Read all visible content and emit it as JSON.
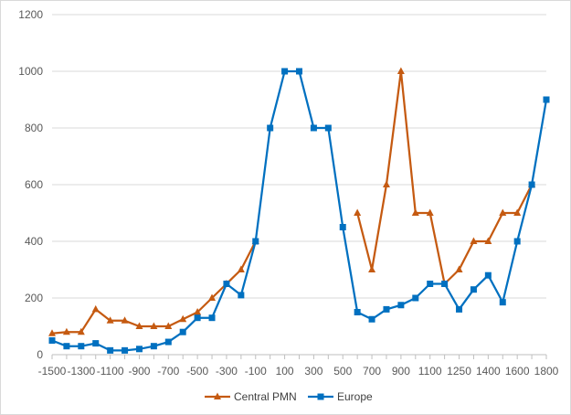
{
  "chart_data": {
    "type": "line",
    "title": "",
    "xlabel": "",
    "ylabel": "",
    "ylim": [
      0,
      1200
    ],
    "yticks": [
      0,
      200,
      400,
      600,
      800,
      1000,
      1200
    ],
    "x_tick_labels": [
      "-1500",
      "-1300",
      "-1100",
      "-900",
      "-700",
      "-500",
      "-300",
      "-100",
      "100",
      "300",
      "500",
      "700",
      "900",
      "1100",
      "1250",
      "1400",
      "1600",
      "1800"
    ],
    "grid": "horizontal",
    "legend": "bottom",
    "series": [
      {
        "name": "Central PMN",
        "color": "#c55a11",
        "marker": "triangle",
        "x": [
          -1500,
          -1400,
          -1300,
          -1200,
          -1100,
          -1000,
          -900,
          -800,
          -700,
          -600,
          -500,
          -400,
          -300,
          -200,
          -100,
          0,
          100,
          200,
          300,
          400,
          500,
          600,
          700,
          800,
          900,
          1000,
          1100,
          1200,
          1250,
          1300,
          1400,
          1500,
          1600,
          1700,
          1800
        ],
        "values": [
          75,
          80,
          80,
          160,
          120,
          120,
          100,
          100,
          100,
          125,
          150,
          200,
          250,
          300,
          400,
          null,
          null,
          null,
          null,
          null,
          null,
          500,
          300,
          600,
          1000,
          500,
          500,
          250,
          300,
          400,
          400,
          500,
          500,
          600,
          null
        ]
      },
      {
        "name": "Europe",
        "color": "#0070c0",
        "marker": "square",
        "x": [
          -1500,
          -1400,
          -1300,
          -1200,
          -1100,
          -1000,
          -900,
          -800,
          -700,
          -600,
          -500,
          -400,
          -300,
          -200,
          -100,
          0,
          100,
          200,
          300,
          400,
          500,
          600,
          700,
          800,
          900,
          1000,
          1100,
          1200,
          1250,
          1300,
          1400,
          1500,
          1600,
          1700,
          1800
        ],
        "values": [
          50,
          30,
          30,
          40,
          15,
          15,
          20,
          30,
          45,
          80,
          130,
          130,
          250,
          210,
          400,
          800,
          1000,
          1000,
          800,
          800,
          450,
          150,
          125,
          160,
          175,
          200,
          250,
          250,
          160,
          230,
          280,
          185,
          400,
          600,
          900
        ]
      }
    ]
  }
}
